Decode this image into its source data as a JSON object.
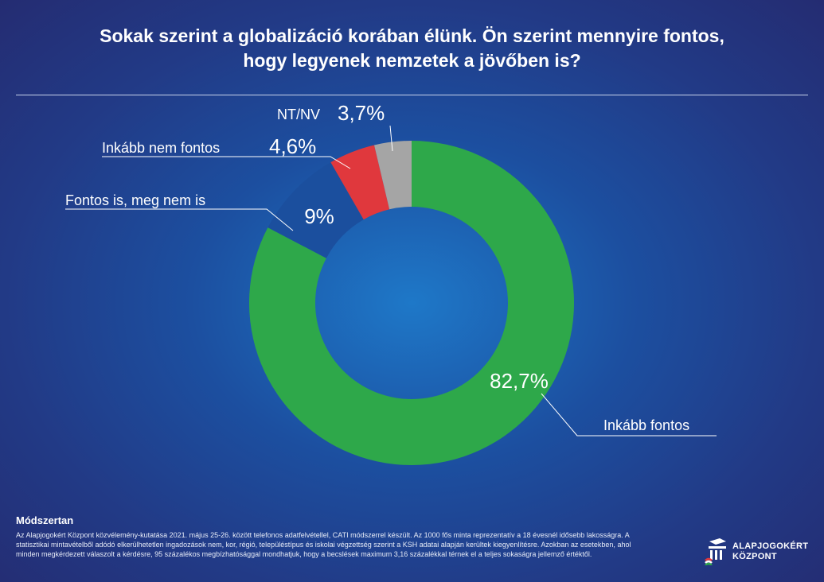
{
  "title": {
    "line1": "Sokak szerint a globalizáció korában élünk. Ön szerint mennyire fontos,",
    "line2": "hogy legyenek nemzetek a jövőben is?"
  },
  "chart_data": {
    "type": "pie",
    "variant": "donut",
    "title": "Sokak szerint a globalizáció korában élünk. Ön szerint mennyire fontos, hogy legyenek nemzetek a jövőben is?",
    "slices": [
      {
        "label": "Inkább fontos",
        "value": 82.7,
        "value_label": "82,7%",
        "color": "#2ea84a"
      },
      {
        "label": "Fontos is, meg nem is",
        "value": 9,
        "value_label": "9%",
        "color": "#1b4f9e"
      },
      {
        "label": "Inkább nem fontos",
        "value": 4.6,
        "value_label": "4,6%",
        "color": "#e0383d"
      },
      {
        "label": "NT/NV",
        "value": 3.7,
        "value_label": "3,7%",
        "color": "#a5a5a5"
      }
    ]
  },
  "methodology": {
    "title": "Módszertan",
    "text": "Az Alapjogokért Központ közvélemény-kutatása 2021. május 25-26. között telefonos adatfelvétellel, CATI módszerrel készült. Az 1000 fős minta reprezentatív a 18 évesnél idősebb lakosságra. A statisztikai mintavételből adódó elkerülhetetlen ingadozások nem, kor, régió, településtípus és iskolai végzettség szerint a KSH adatai alapján kerültek kiegyenlítésre. Azokban az esetekben, ahol minden megkérdezett válaszolt a kérdésre, 95 százalékos megbízhatósággal mondhatjuk, hogy a becslések maximum 3,16 százalékkal térnek el a teljes sokaságra jellemző értéktől."
  },
  "logo": {
    "line1": "ALAPJOGOKÉRT",
    "line2": "KÖZPONT"
  },
  "colors": {
    "background": "#223a86",
    "green": "#2ea84a",
    "blue": "#1b4f9e",
    "red": "#e0383d",
    "gray": "#a5a5a5"
  }
}
